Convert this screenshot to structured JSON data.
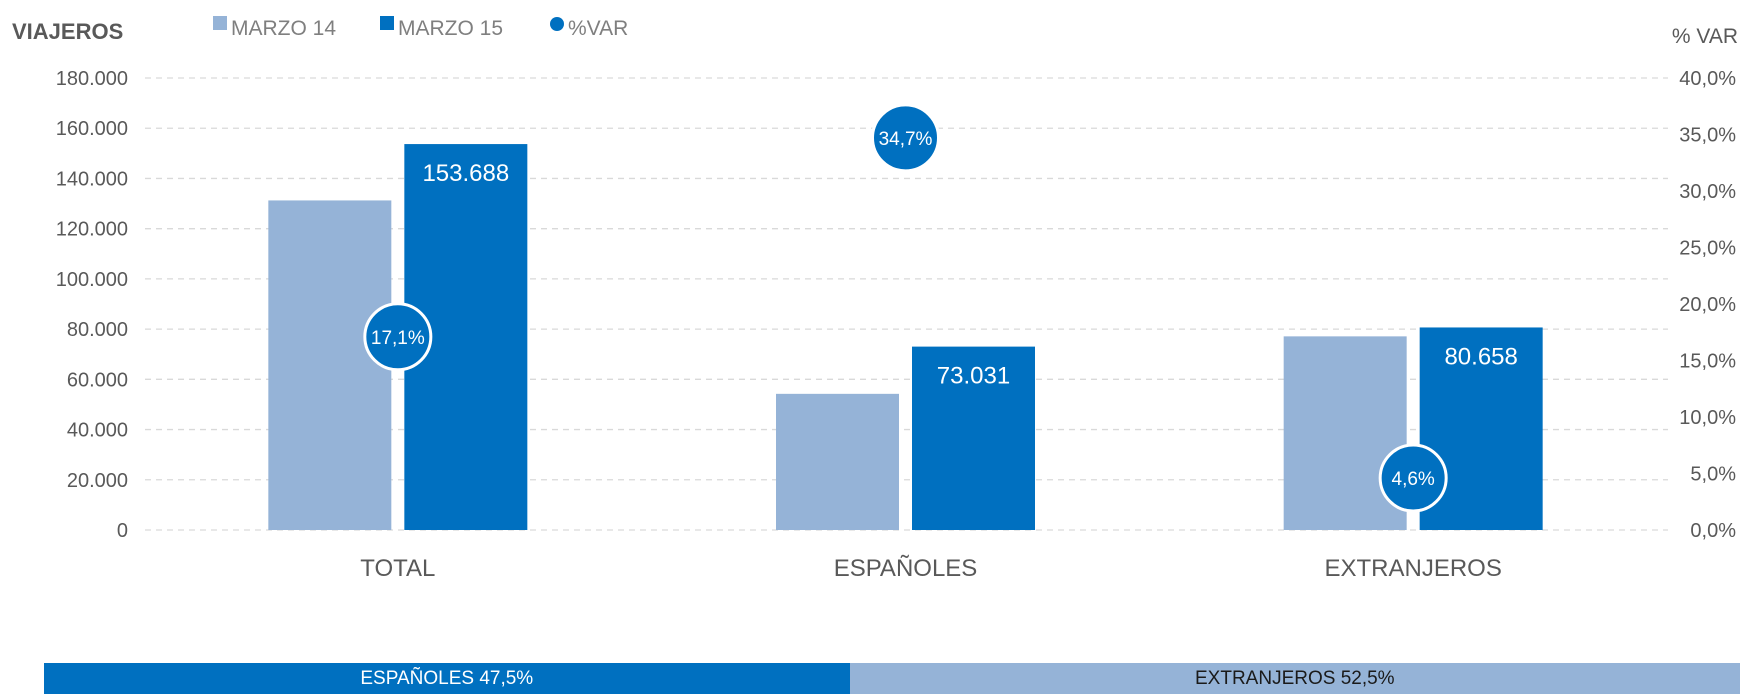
{
  "chart_data": {
    "type": "bar",
    "y_axis_title": "VIAJEROS",
    "y2_axis_title": "% VAR",
    "categories": [
      "TOTAL",
      "ESPAÑOLES",
      "EXTRANJEROS"
    ],
    "series": [
      {
        "name": "MARZO 14",
        "type": "bar",
        "color": "#95b3d7",
        "values": [
          131245,
          54222,
          77114
        ]
      },
      {
        "name": "MARZO 15",
        "type": "bar",
        "color": "#0070c0",
        "values": [
          153688,
          73031,
          80658
        ],
        "data_labels": [
          "153.688",
          "73.031",
          "80.658"
        ]
      },
      {
        "name": "%VAR",
        "type": "marker",
        "axis": "secondary",
        "color": "#0070c0",
        "values": [
          17.1,
          34.7,
          4.6
        ],
        "data_labels": [
          "17,1%",
          "34,7%",
          "4,6%"
        ]
      }
    ],
    "ylim": [
      0,
      180000
    ],
    "y_ticks": [
      "0",
      "20.000",
      "40.000",
      "60.000",
      "80.000",
      "100.000",
      "120.000",
      "140.000",
      "160.000",
      "180.000"
    ],
    "y2lim": [
      0,
      40
    ],
    "y2_ticks": [
      "0,0%",
      "5,0%",
      "10,0%",
      "15,0%",
      "20,0%",
      "25,0%",
      "30,0%",
      "35,0%",
      "40,0%"
    ],
    "grid": true,
    "legend_position": "top-left"
  },
  "share_bar": {
    "segments": [
      {
        "label": "ESPAÑOLES 47,5%",
        "value": 47.5,
        "color": "#0070c0"
      },
      {
        "label": "EXTRANJEROS 52,5%",
        "value": 52.5,
        "color": "#95b3d7"
      }
    ]
  }
}
